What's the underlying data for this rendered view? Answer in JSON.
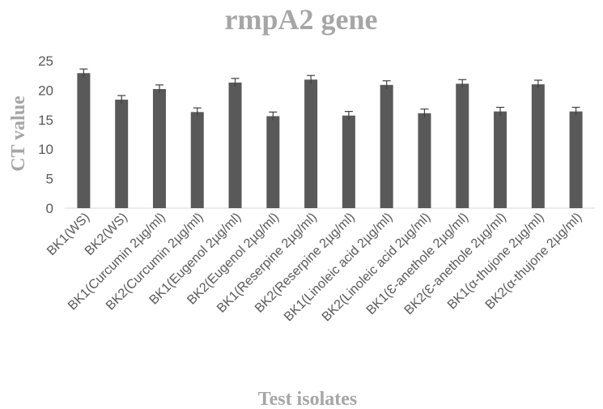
{
  "chart_data": {
    "type": "bar",
    "title": "rmpA2 gene",
    "xlabel": "Test isolates",
    "ylabel": "CT value",
    "ylim": [
      0,
      25
    ],
    "yticks": [
      0,
      5,
      10,
      15,
      20,
      25
    ],
    "grid": false,
    "legend": "none",
    "categories": [
      "BK1(WS)",
      "BK2(WS)",
      "BK1(Curcumin 2µg/ml)",
      "BK2(Curcumin 2µg/ml)",
      "BK1(Eugenol 2µg/ml)",
      "BK2(Eugenol 2µg/ml)",
      "BK1(Reserpine 2µg/ml)",
      "BK2(Reserpine 2µg/ml)",
      "BK1(Linoleic acid 2µg/ml)",
      "BK2(Linoleic acid  2µg/ml)",
      "BK1(Ɛ-anethole 2µg/ml)",
      "BK2(Ɛ-anethole 2µg/ml)",
      "BK1(α-thujone 2µg/ml)",
      "BK2(α-thujone 2µg/ml)"
    ],
    "series": [
      {
        "values": [
          22.9,
          18.4,
          20.2,
          16.3,
          21.3,
          15.6,
          21.8,
          15.7,
          20.9,
          16.1,
          21.1,
          16.4,
          21.0,
          16.4
        ],
        "errors": [
          0.7,
          0.7,
          0.7,
          0.7,
          0.7,
          0.7,
          0.7,
          0.7,
          0.7,
          0.7,
          0.7,
          0.7,
          0.7,
          0.7
        ]
      }
    ],
    "colors": {
      "bar": "#595959",
      "axis": "#d9d9d9",
      "title": "#a6a6a6",
      "tick": "#595959"
    }
  }
}
